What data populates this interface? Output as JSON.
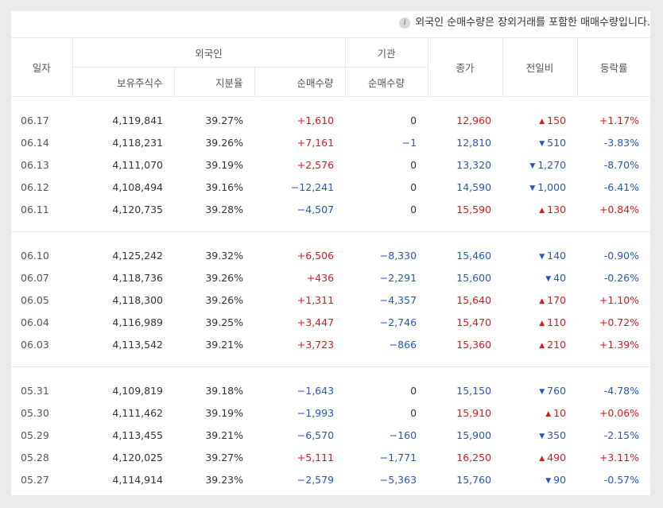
{
  "note": {
    "icon": "info-icon",
    "text": "외국인 순매수량은 장외거래를 포함한 매매수량입니다."
  },
  "header": {
    "date": "일자",
    "foreign": "외국인",
    "institution": "기관",
    "close": "종가",
    "change": "전일비",
    "rate": "등락률",
    "holdings": "보유주식수",
    "share": "지분율",
    "foreign_net": "순매수량",
    "inst_net": "순매수량"
  },
  "groups": [
    [
      {
        "date": "06.17",
        "holdings": "4,119,841",
        "share": "39.27%",
        "foreign_net": "+1,610",
        "foreign_net_color": "red",
        "inst_net": "0",
        "inst_net_color": "dark",
        "close": "12,960",
        "close_color": "red",
        "change": "150",
        "dir": "up",
        "rate": "+1.17%"
      },
      {
        "date": "06.14",
        "holdings": "4,118,231",
        "share": "39.26%",
        "foreign_net": "+7,161",
        "foreign_net_color": "red",
        "inst_net": "−1",
        "inst_net_color": "blue",
        "close": "12,810",
        "close_color": "blue",
        "change": "510",
        "dir": "down",
        "rate": "-3.83%"
      },
      {
        "date": "06.13",
        "holdings": "4,111,070",
        "share": "39.19%",
        "foreign_net": "+2,576",
        "foreign_net_color": "red",
        "inst_net": "0",
        "inst_net_color": "dark",
        "close": "13,320",
        "close_color": "blue",
        "change": "1,270",
        "dir": "down",
        "rate": "-8.70%"
      },
      {
        "date": "06.12",
        "holdings": "4,108,494",
        "share": "39.16%",
        "foreign_net": "−12,241",
        "foreign_net_color": "blue",
        "inst_net": "0",
        "inst_net_color": "dark",
        "close": "14,590",
        "close_color": "blue",
        "change": "1,000",
        "dir": "down",
        "rate": "-6.41%"
      },
      {
        "date": "06.11",
        "holdings": "4,120,735",
        "share": "39.28%",
        "foreign_net": "−4,507",
        "foreign_net_color": "blue",
        "inst_net": "0",
        "inst_net_color": "dark",
        "close": "15,590",
        "close_color": "red",
        "change": "130",
        "dir": "up",
        "rate": "+0.84%"
      }
    ],
    [
      {
        "date": "06.10",
        "holdings": "4,125,242",
        "share": "39.32%",
        "foreign_net": "+6,506",
        "foreign_net_color": "red",
        "inst_net": "−8,330",
        "inst_net_color": "blue",
        "close": "15,460",
        "close_color": "blue",
        "change": "140",
        "dir": "down",
        "rate": "-0.90%"
      },
      {
        "date": "06.07",
        "holdings": "4,118,736",
        "share": "39.26%",
        "foreign_net": "+436",
        "foreign_net_color": "red",
        "inst_net": "−2,291",
        "inst_net_color": "blue",
        "close": "15,600",
        "close_color": "blue",
        "change": "40",
        "dir": "down",
        "rate": "-0.26%"
      },
      {
        "date": "06.05",
        "holdings": "4,118,300",
        "share": "39.26%",
        "foreign_net": "+1,311",
        "foreign_net_color": "red",
        "inst_net": "−4,357",
        "inst_net_color": "blue",
        "close": "15,640",
        "close_color": "red",
        "change": "170",
        "dir": "up",
        "rate": "+1.10%"
      },
      {
        "date": "06.04",
        "holdings": "4,116,989",
        "share": "39.25%",
        "foreign_net": "+3,447",
        "foreign_net_color": "red",
        "inst_net": "−2,746",
        "inst_net_color": "blue",
        "close": "15,470",
        "close_color": "red",
        "change": "110",
        "dir": "up",
        "rate": "+0.72%"
      },
      {
        "date": "06.03",
        "holdings": "4,113,542",
        "share": "39.21%",
        "foreign_net": "+3,723",
        "foreign_net_color": "red",
        "inst_net": "−866",
        "inst_net_color": "blue",
        "close": "15,360",
        "close_color": "red",
        "change": "210",
        "dir": "up",
        "rate": "+1.39%"
      }
    ],
    [
      {
        "date": "05.31",
        "holdings": "4,109,819",
        "share": "39.18%",
        "foreign_net": "−1,643",
        "foreign_net_color": "blue",
        "inst_net": "0",
        "inst_net_color": "dark",
        "close": "15,150",
        "close_color": "blue",
        "change": "760",
        "dir": "down",
        "rate": "-4.78%"
      },
      {
        "date": "05.30",
        "holdings": "4,111,462",
        "share": "39.19%",
        "foreign_net": "−1,993",
        "foreign_net_color": "blue",
        "inst_net": "0",
        "inst_net_color": "dark",
        "close": "15,910",
        "close_color": "red",
        "change": "10",
        "dir": "up",
        "rate": "+0.06%"
      },
      {
        "date": "05.29",
        "holdings": "4,113,455",
        "share": "39.21%",
        "foreign_net": "−6,570",
        "foreign_net_color": "blue",
        "inst_net": "−160",
        "inst_net_color": "blue",
        "close": "15,900",
        "close_color": "blue",
        "change": "350",
        "dir": "down",
        "rate": "-2.15%"
      },
      {
        "date": "05.28",
        "holdings": "4,120,025",
        "share": "39.27%",
        "foreign_net": "+5,111",
        "foreign_net_color": "red",
        "inst_net": "−1,771",
        "inst_net_color": "blue",
        "close": "16,250",
        "close_color": "red",
        "change": "490",
        "dir": "up",
        "rate": "+3.11%"
      },
      {
        "date": "05.27",
        "holdings": "4,114,914",
        "share": "39.23%",
        "foreign_net": "−2,579",
        "foreign_net_color": "blue",
        "inst_net": "−5,363",
        "inst_net_color": "blue",
        "close": "15,760",
        "close_color": "blue",
        "change": "90",
        "dir": "down",
        "rate": "-0.57%"
      }
    ]
  ]
}
